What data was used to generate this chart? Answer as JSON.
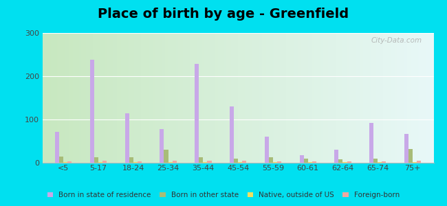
{
  "title": "Place of birth by age - Greenfield",
  "categories": [
    "<5",
    "5-17",
    "18-24",
    "25-34",
    "35-44",
    "45-54",
    "55-59",
    "60-61",
    "62-64",
    "65-74",
    "75+"
  ],
  "series": {
    "Born in state of residence": [
      72,
      238,
      115,
      78,
      228,
      130,
      60,
      17,
      30,
      92,
      67
    ],
    "Born in other state": [
      15,
      12,
      13,
      30,
      13,
      10,
      12,
      10,
      8,
      10,
      32
    ],
    "Native, outside of US": [
      2,
      2,
      2,
      2,
      2,
      2,
      2,
      2,
      2,
      2,
      2
    ],
    "Foreign-born": [
      3,
      5,
      3,
      4,
      4,
      4,
      3,
      3,
      3,
      3,
      4
    ]
  },
  "colors": {
    "Born in state of residence": "#c8a8e8",
    "Born in other state": "#a8bc78",
    "Native, outside of US": "#f0e060",
    "Foreign-born": "#f0a8a0"
  },
  "ylim": [
    0,
    300
  ],
  "yticks": [
    0,
    100,
    200,
    300
  ],
  "outer_bg": "#00e0f0",
  "plot_bg_left": "#c8e8c0",
  "plot_bg_right": "#e8f8f8",
  "title_fontsize": 14,
  "watermark": "City-Data.com"
}
